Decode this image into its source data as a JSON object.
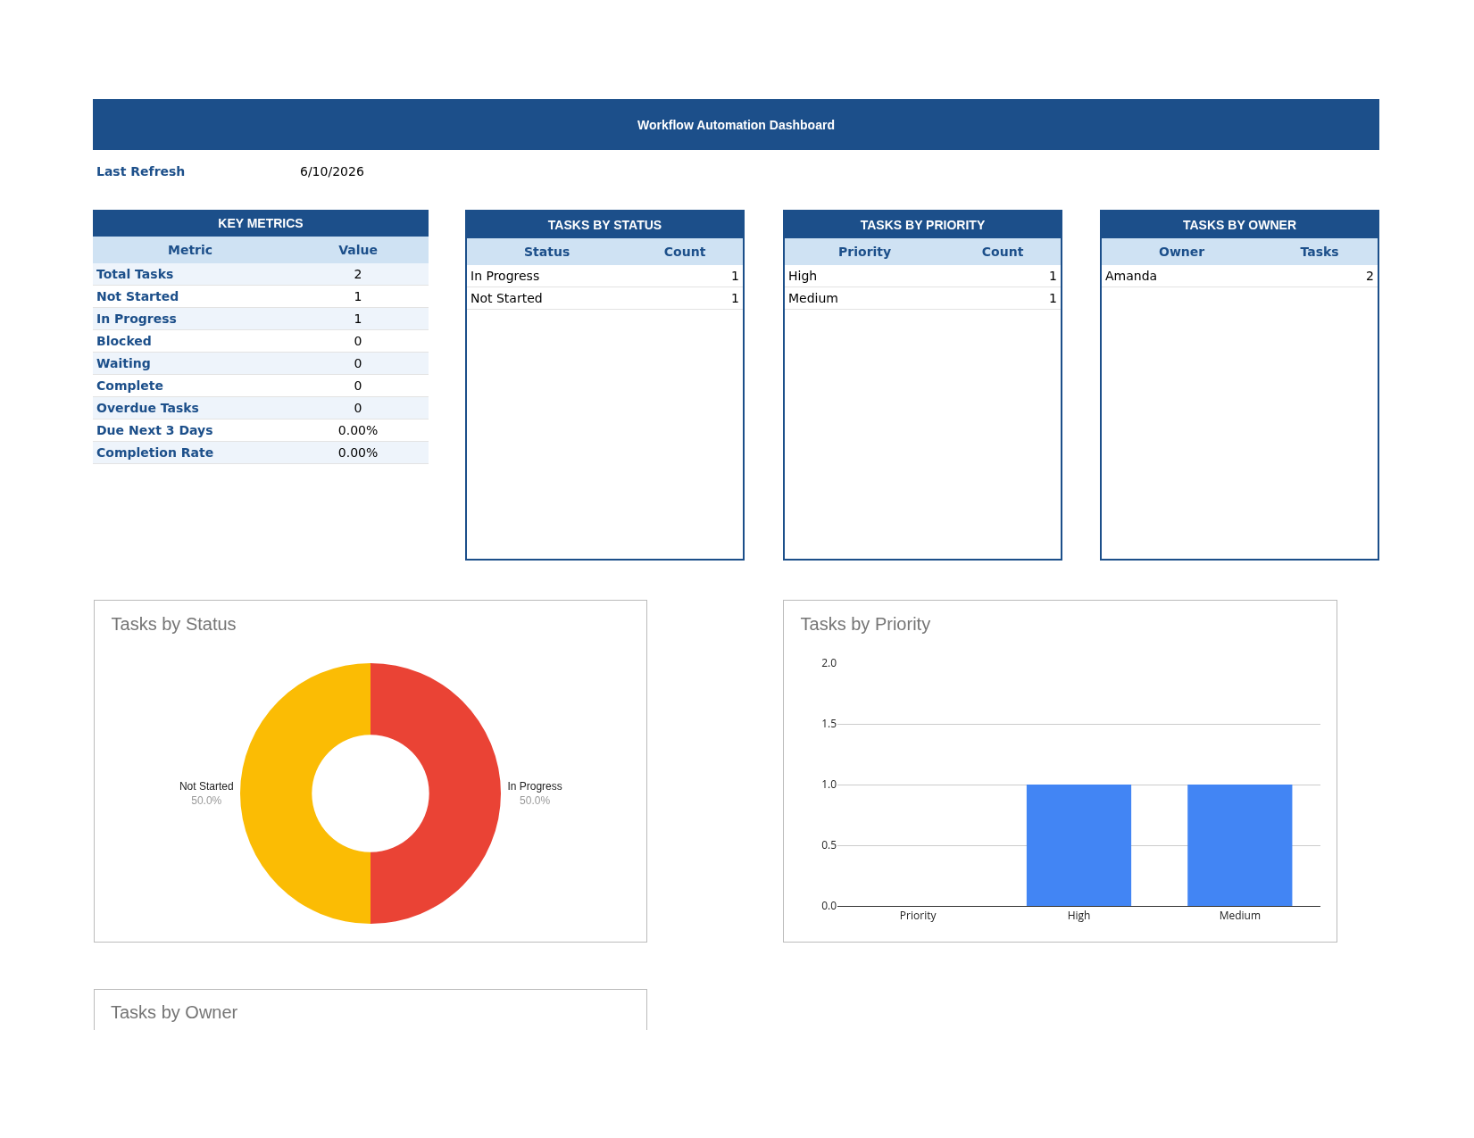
{
  "chart_data": [
    {
      "type": "other",
      "title": "Workflow Automation Dashboard",
      "annotations": [
        "Last Refresh",
        "6/10/2026"
      ]
    },
    {
      "type": "other",
      "title": "KEY METRICS",
      "annotations": [
        "Metric",
        "Value",
        "Total Tasks",
        "2",
        "Not Started",
        "1",
        "In Progress",
        "1",
        "Blocked",
        "0",
        "Waiting",
        "0",
        "Complete",
        "0",
        "Overdue Tasks",
        "0",
        "Due Next 3 Days",
        "0.00%",
        "Completion Rate",
        "0.00%"
      ]
    },
    {
      "type": "other",
      "title": "TASKS BY STATUS",
      "annotations": [
        "Status",
        "Count",
        "In Progress",
        "1",
        "Not Started",
        "1"
      ]
    },
    {
      "type": "other",
      "title": "TASKS BY PRIORITY",
      "annotations": [
        "Priority",
        "Count",
        "High",
        "1",
        "Medium",
        "1"
      ]
    },
    {
      "type": "other",
      "title": "TASKS BY OWNER",
      "annotations": [
        "Owner",
        "Tasks",
        "Amanda",
        "2"
      ]
    },
    {
      "type": "donut",
      "title": "Tasks by Status",
      "categories": [
        "In Progress",
        "Not Started"
      ],
      "values": [
        50,
        50
      ],
      "value_labels": [
        "50.0%",
        "50.0%"
      ],
      "colors": [
        "#ea4335",
        "#fbbc04"
      ],
      "legend": false
    },
    {
      "type": "bar",
      "title": "Tasks by Priority",
      "categories": [
        "Priority",
        "High",
        "Medium"
      ],
      "values": [
        null,
        1,
        1
      ],
      "color": "#4285f4",
      "ylim": [
        0,
        2
      ],
      "yticks": [
        {
          "value": 0,
          "label": "0.0"
        },
        {
          "value": 0.5,
          "label": "0.5"
        },
        {
          "value": 1,
          "label": "1.0"
        },
        {
          "value": 1.5,
          "label": "1.5"
        },
        {
          "value": 2,
          "label": "2.0"
        }
      ],
      "grid": "y",
      "legend": false
    },
    {
      "type": "other",
      "title": "Tasks by Owner"
    }
  ]
}
